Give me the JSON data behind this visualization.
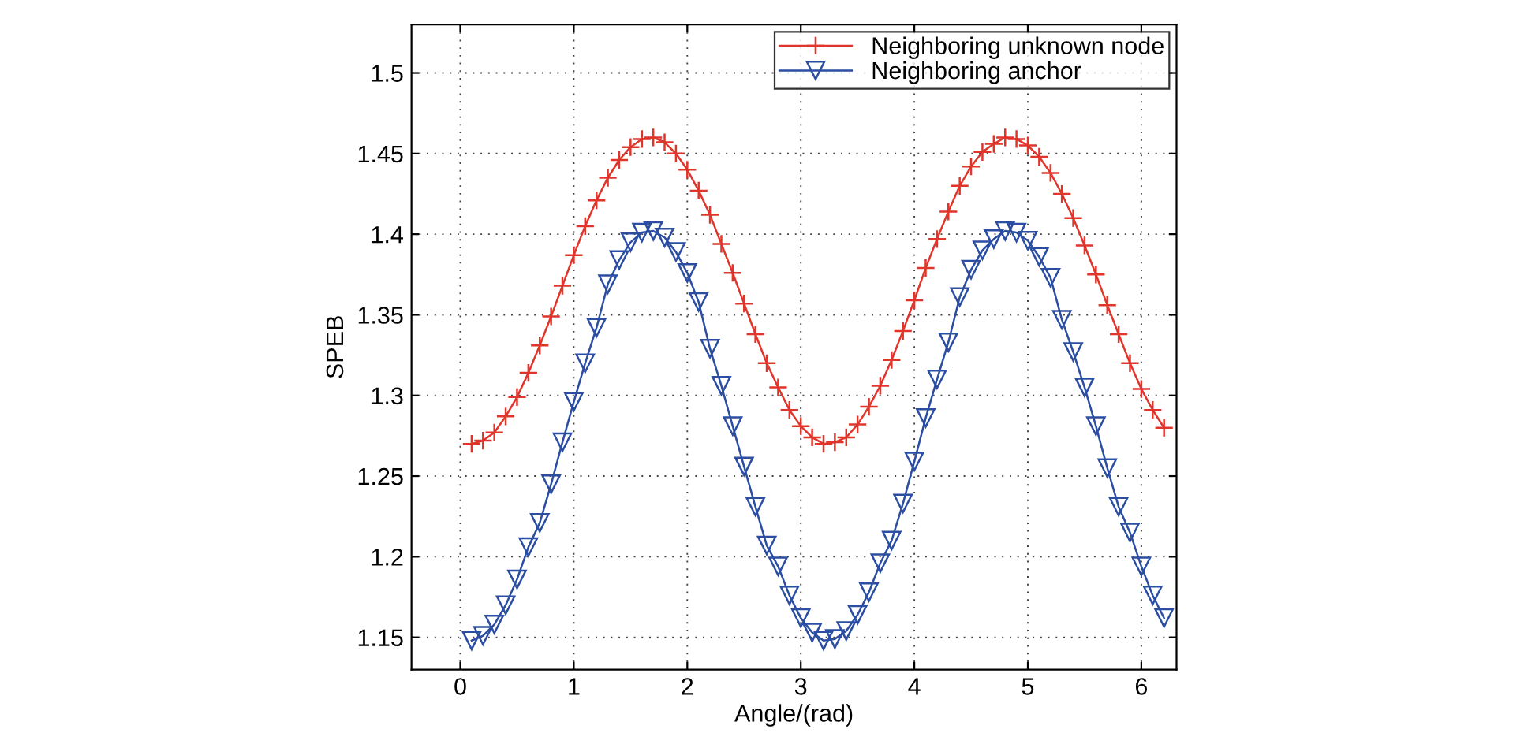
{
  "chart_data": {
    "type": "line",
    "xlabel": "Angle/(rad)",
    "ylabel": "SPEB",
    "x": [
      0.1,
      0.2,
      0.3,
      0.4,
      0.5,
      0.6,
      0.7,
      0.8,
      0.9,
      1.0,
      1.1,
      1.2,
      1.3,
      1.4,
      1.5,
      1.6,
      1.7,
      1.8,
      1.9,
      2.0,
      2.1,
      2.2,
      2.3,
      2.4,
      2.5,
      2.6,
      2.7,
      2.8,
      2.9,
      3.0,
      3.1,
      3.2,
      3.3,
      3.4,
      3.5,
      3.6,
      3.7,
      3.8,
      3.9,
      4.0,
      4.1,
      4.2,
      4.3,
      4.4,
      4.5,
      4.6,
      4.7,
      4.8,
      4.9,
      5.0,
      5.1,
      5.2,
      5.3,
      5.4,
      5.5,
      5.6,
      5.7,
      5.8,
      5.9,
      6.0,
      6.1,
      6.2
    ],
    "series": [
      {
        "name": "Neighboring unknown node",
        "color": "#e0352b",
        "marker": "cross",
        "values": [
          1.27,
          1.272,
          1.277,
          1.287,
          1.299,
          1.314,
          1.331,
          1.349,
          1.368,
          1.387,
          1.405,
          1.421,
          1.435,
          1.446,
          1.454,
          1.459,
          1.46,
          1.457,
          1.45,
          1.44,
          1.427,
          1.412,
          1.394,
          1.376,
          1.357,
          1.338,
          1.32,
          1.305,
          1.291,
          1.281,
          1.274,
          1.27,
          1.271,
          1.274,
          1.282,
          1.293,
          1.306,
          1.322,
          1.34,
          1.359,
          1.379,
          1.397,
          1.414,
          1.43,
          1.442,
          1.451,
          1.456,
          1.46,
          1.459,
          1.455,
          1.448,
          1.438,
          1.425,
          1.41,
          1.393,
          1.375,
          1.356,
          1.338,
          1.32,
          1.304,
          1.291,
          1.28
        ]
      },
      {
        "name": "Neighboring anchor",
        "color": "#2b4ea2",
        "marker": "triangle",
        "values": [
          1.148,
          1.151,
          1.158,
          1.17,
          1.186,
          1.206,
          1.221,
          1.245,
          1.271,
          1.296,
          1.32,
          1.342,
          1.369,
          1.384,
          1.395,
          1.401,
          1.402,
          1.398,
          1.389,
          1.376,
          1.358,
          1.329,
          1.306,
          1.281,
          1.256,
          1.231,
          1.207,
          1.194,
          1.176,
          1.162,
          1.153,
          1.148,
          1.149,
          1.154,
          1.164,
          1.178,
          1.196,
          1.21,
          1.233,
          1.259,
          1.286,
          1.31,
          1.333,
          1.361,
          1.378,
          1.39,
          1.397,
          1.402,
          1.401,
          1.396,
          1.386,
          1.373,
          1.347,
          1.327,
          1.305,
          1.281,
          1.255,
          1.231,
          1.215,
          1.194,
          1.176,
          1.162
        ]
      }
    ],
    "xlim": [
      -0.43,
      6.31
    ],
    "xticks": [
      0,
      1,
      2,
      3,
      4,
      5,
      6
    ],
    "ylim": [
      1.13,
      1.53
    ],
    "yticks": [
      1.15,
      1.2,
      1.25,
      1.3,
      1.35,
      1.4,
      1.45,
      1.5
    ],
    "grid": true,
    "legend": "top right",
    "line_style": "solid"
  }
}
